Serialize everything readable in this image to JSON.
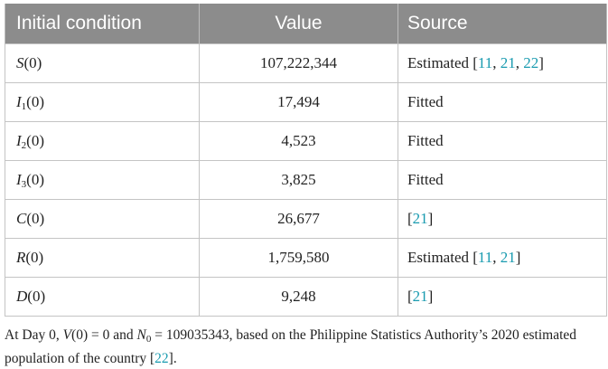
{
  "headers": {
    "col1": "Initial condition",
    "col2": "Value",
    "col3": "Source"
  },
  "rows": [
    {
      "var": "S",
      "sub": "",
      "arg": "(0)",
      "value": "107,222,344",
      "source_text": "Estimated [",
      "refs": [
        "11",
        "21",
        "22"
      ],
      "source_end": "]"
    },
    {
      "var": "I",
      "sub": "1",
      "arg": "(0)",
      "value": "17,494",
      "source_text": "Fitted",
      "refs": [],
      "source_end": ""
    },
    {
      "var": "I",
      "sub": "2",
      "arg": "(0)",
      "value": "4,523",
      "source_text": "Fitted",
      "refs": [],
      "source_end": ""
    },
    {
      "var": "I",
      "sub": "3",
      "arg": "(0)",
      "value": "3,825",
      "source_text": "Fitted",
      "refs": [],
      "source_end": ""
    },
    {
      "var": "C",
      "sub": "",
      "arg": "(0)",
      "value": "26,677",
      "source_text": "[",
      "refs": [
        "21"
      ],
      "source_end": "]"
    },
    {
      "var": "R",
      "sub": "",
      "arg": "(0)",
      "value": "1,759,580",
      "source_text": "Estimated [",
      "refs": [
        "11",
        "21"
      ],
      "source_end": "]"
    },
    {
      "var": "D",
      "sub": "",
      "arg": "(0)",
      "value": "9,248",
      "source_text": "[",
      "refs": [
        "21"
      ],
      "source_end": "]"
    }
  ],
  "footnote": {
    "prefix": "At Day 0, ",
    "v_var": "V",
    "v_expr": "(0) = 0 and ",
    "n_var": "N",
    "n_sub": "0",
    "n_expr": " = 109035343, based on the Philippine Statistics Authority’s 2020 estimated population of the country [",
    "ref": "22",
    "suffix": "]."
  },
  "colors": {
    "header_bg": "#8c8c8c",
    "header_text": "#ffffff",
    "ref_link": "#1a9bb0",
    "grid": "#c4c4c4"
  }
}
